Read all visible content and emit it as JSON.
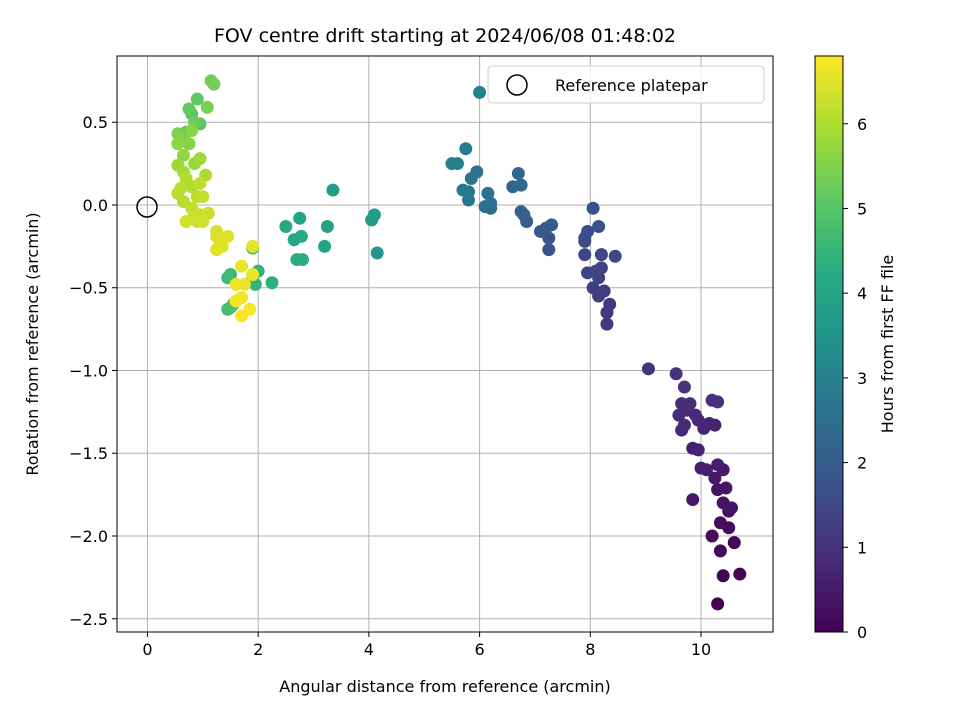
{
  "chart_data": {
    "type": "scatter",
    "title": "FOV centre drift starting at 2024/06/08 01:48:02",
    "xlabel": "Angular distance from reference (arcmin)",
    "ylabel": "Rotation from reference (arcmin)",
    "xlim": [
      -0.55,
      11.3
    ],
    "ylim": [
      -2.58,
      0.9
    ],
    "xticks": [
      0,
      2,
      4,
      6,
      8,
      10
    ],
    "yticks": [
      -2.5,
      -2.0,
      -1.5,
      -1.0,
      -0.5,
      0.0,
      0.5
    ],
    "xtick_labels": [
      "0",
      "2",
      "4",
      "6",
      "8",
      "10"
    ],
    "ytick_labels": [
      "−2.5",
      "−2.0",
      "−1.5",
      "−1.0",
      "−0.5",
      "0.0",
      "0.5"
    ],
    "grid": true,
    "colormap": "viridis",
    "colorbar": {
      "label": "Hours from first FF file",
      "range": [
        0,
        6.8
      ],
      "ticks": [
        0,
        1,
        2,
        3,
        4,
        5,
        6
      ],
      "tick_labels": [
        "0",
        "1",
        "2",
        "3",
        "4",
        "5",
        "6"
      ]
    },
    "legend": {
      "placement": "top-right",
      "entries": [
        {
          "label": "Reference platepar",
          "marker": "open-circle"
        }
      ]
    },
    "reference_point": {
      "x": 0,
      "y": 0
    },
    "points": [
      {
        "x": 10.3,
        "y": -2.41,
        "t": 0.02
      },
      {
        "x": 10.4,
        "y": -2.24,
        "t": 0.05
      },
      {
        "x": 10.7,
        "y": -2.23,
        "t": 0.08
      },
      {
        "x": 10.6,
        "y": -2.04,
        "t": 0.12
      },
      {
        "x": 10.35,
        "y": -2.09,
        "t": 0.15
      },
      {
        "x": 10.2,
        "y": -2.0,
        "t": 0.18
      },
      {
        "x": 10.5,
        "y": -1.95,
        "t": 0.22
      },
      {
        "x": 10.35,
        "y": -1.92,
        "t": 0.25
      },
      {
        "x": 10.5,
        "y": -1.85,
        "t": 0.28
      },
      {
        "x": 10.4,
        "y": -1.8,
        "t": 0.32
      },
      {
        "x": 10.55,
        "y": -1.83,
        "t": 0.35
      },
      {
        "x": 10.3,
        "y": -1.72,
        "t": 0.38
      },
      {
        "x": 10.45,
        "y": -1.71,
        "t": 0.42
      },
      {
        "x": 9.85,
        "y": -1.78,
        "t": 0.45
      },
      {
        "x": 10.25,
        "y": -1.65,
        "t": 0.48
      },
      {
        "x": 10.4,
        "y": -1.6,
        "t": 0.52
      },
      {
        "x": 10.3,
        "y": -1.57,
        "t": 0.55
      },
      {
        "x": 10.1,
        "y": -1.6,
        "t": 0.58
      },
      {
        "x": 10.0,
        "y": -1.59,
        "t": 0.6
      },
      {
        "x": 9.85,
        "y": -1.47,
        "t": 0.62
      },
      {
        "x": 9.95,
        "y": -1.48,
        "t": 0.65
      },
      {
        "x": 10.25,
        "y": -1.33,
        "t": 0.68
      },
      {
        "x": 10.15,
        "y": -1.32,
        "t": 0.7
      },
      {
        "x": 10.05,
        "y": -1.35,
        "t": 0.72
      },
      {
        "x": 9.95,
        "y": -1.3,
        "t": 0.75
      },
      {
        "x": 9.65,
        "y": -1.36,
        "t": 0.78
      },
      {
        "x": 9.7,
        "y": -1.33,
        "t": 0.8
      },
      {
        "x": 9.9,
        "y": -1.27,
        "t": 0.82
      },
      {
        "x": 9.6,
        "y": -1.27,
        "t": 0.85
      },
      {
        "x": 9.75,
        "y": -1.24,
        "t": 0.87
      },
      {
        "x": 9.65,
        "y": -1.2,
        "t": 0.9
      },
      {
        "x": 9.8,
        "y": -1.2,
        "t": 0.92
      },
      {
        "x": 10.2,
        "y": -1.18,
        "t": 0.95
      },
      {
        "x": 10.3,
        "y": -1.19,
        "t": 0.97
      },
      {
        "x": 9.7,
        "y": -1.1,
        "t": 1.0
      },
      {
        "x": 9.55,
        "y": -1.02,
        "t": 1.02
      },
      {
        "x": 9.05,
        "y": -0.99,
        "t": 1.05
      },
      {
        "x": 8.3,
        "y": -0.72,
        "t": 1.12
      },
      {
        "x": 8.3,
        "y": -0.65,
        "t": 1.15
      },
      {
        "x": 8.35,
        "y": -0.6,
        "t": 1.18
      },
      {
        "x": 8.15,
        "y": -0.55,
        "t": 1.22
      },
      {
        "x": 8.25,
        "y": -0.52,
        "t": 1.25
      },
      {
        "x": 8.05,
        "y": -0.5,
        "t": 1.28
      },
      {
        "x": 8.15,
        "y": -0.44,
        "t": 1.32
      },
      {
        "x": 8.2,
        "y": -0.38,
        "t": 1.35
      },
      {
        "x": 7.95,
        "y": -0.41,
        "t": 1.38
      },
      {
        "x": 8.1,
        "y": -0.4,
        "t": 1.42
      },
      {
        "x": 7.9,
        "y": -0.3,
        "t": 1.45
      },
      {
        "x": 8.2,
        "y": -0.3,
        "t": 1.48
      },
      {
        "x": 8.45,
        "y": -0.31,
        "t": 1.5
      },
      {
        "x": 7.9,
        "y": -0.22,
        "t": 1.55
      },
      {
        "x": 7.9,
        "y": -0.2,
        "t": 1.58
      },
      {
        "x": 7.95,
        "y": -0.16,
        "t": 1.62
      },
      {
        "x": 8.15,
        "y": -0.13,
        "t": 1.65
      },
      {
        "x": 8.05,
        "y": -0.02,
        "t": 1.68
      },
      {
        "x": 7.25,
        "y": -0.27,
        "t": 1.75
      },
      {
        "x": 7.25,
        "y": -0.2,
        "t": 1.8
      },
      {
        "x": 7.1,
        "y": -0.16,
        "t": 1.85
      },
      {
        "x": 7.2,
        "y": -0.14,
        "t": 1.9
      },
      {
        "x": 7.3,
        "y": -0.12,
        "t": 1.95
      },
      {
        "x": 6.85,
        "y": -0.1,
        "t": 2.0
      },
      {
        "x": 6.8,
        "y": -0.06,
        "t": 2.05
      },
      {
        "x": 6.75,
        "y": -0.04,
        "t": 2.1
      },
      {
        "x": 6.6,
        "y": 0.11,
        "t": 2.2
      },
      {
        "x": 6.75,
        "y": 0.12,
        "t": 2.25
      },
      {
        "x": 6.7,
        "y": 0.19,
        "t": 2.3
      },
      {
        "x": 6.2,
        "y": -0.02,
        "t": 2.4
      },
      {
        "x": 6.1,
        "y": -0.01,
        "t": 2.45
      },
      {
        "x": 6.2,
        "y": 0.01,
        "t": 2.5
      },
      {
        "x": 6.15,
        "y": 0.07,
        "t": 2.55
      },
      {
        "x": 5.95,
        "y": 0.2,
        "t": 2.6
      },
      {
        "x": 5.85,
        "y": 0.16,
        "t": 2.65
      },
      {
        "x": 5.8,
        "y": 0.03,
        "t": 2.7
      },
      {
        "x": 5.8,
        "y": 0.08,
        "t": 2.75
      },
      {
        "x": 5.7,
        "y": 0.09,
        "t": 2.8
      },
      {
        "x": 5.75,
        "y": 0.34,
        "t": 2.85
      },
      {
        "x": 5.6,
        "y": 0.25,
        "t": 2.9
      },
      {
        "x": 5.5,
        "y": 0.25,
        "t": 2.95
      },
      {
        "x": 6.0,
        "y": 0.68,
        "t": 3.0
      },
      {
        "x": 4.15,
        "y": -0.29,
        "t": 3.6
      },
      {
        "x": 4.05,
        "y": -0.09,
        "t": 3.7
      },
      {
        "x": 4.1,
        "y": -0.06,
        "t": 3.75
      },
      {
        "x": 3.35,
        "y": 0.09,
        "t": 3.8
      },
      {
        "x": 3.25,
        "y": -0.13,
        "t": 3.9
      },
      {
        "x": 3.2,
        "y": -0.25,
        "t": 3.95
      },
      {
        "x": 2.75,
        "y": -0.08,
        "t": 4.0
      },
      {
        "x": 2.65,
        "y": -0.21,
        "t": 4.05
      },
      {
        "x": 2.78,
        "y": -0.19,
        "t": 4.1
      },
      {
        "x": 2.5,
        "y": -0.13,
        "t": 4.15
      },
      {
        "x": 2.7,
        "y": -0.33,
        "t": 4.2
      },
      {
        "x": 2.8,
        "y": -0.33,
        "t": 4.25
      },
      {
        "x": 2.25,
        "y": -0.47,
        "t": 4.35
      },
      {
        "x": 2.0,
        "y": -0.4,
        "t": 4.4
      },
      {
        "x": 1.9,
        "y": -0.45,
        "t": 4.45
      },
      {
        "x": 1.95,
        "y": -0.48,
        "t": 4.5
      },
      {
        "x": 1.9,
        "y": -0.26,
        "t": 4.55
      },
      {
        "x": 1.5,
        "y": -0.42,
        "t": 4.6
      },
      {
        "x": 1.45,
        "y": -0.44,
        "t": 4.65
      },
      {
        "x": 1.55,
        "y": -0.6,
        "t": 4.7
      },
      {
        "x": 1.45,
        "y": -0.63,
        "t": 4.75
      },
      {
        "x": 1.5,
        "y": -0.62,
        "t": 4.8
      },
      {
        "x": 0.8,
        "y": 0.55,
        "t": 5.0
      },
      {
        "x": 0.95,
        "y": 0.49,
        "t": 5.05
      },
      {
        "x": 0.9,
        "y": 0.64,
        "t": 5.1
      },
      {
        "x": 0.7,
        "y": 0.44,
        "t": 5.15
      },
      {
        "x": 0.75,
        "y": 0.58,
        "t": 5.2
      },
      {
        "x": 0.85,
        "y": 0.5,
        "t": 5.25
      },
      {
        "x": 1.15,
        "y": 0.75,
        "t": 5.3
      },
      {
        "x": 1.2,
        "y": 0.73,
        "t": 5.35
      },
      {
        "x": 1.08,
        "y": 0.59,
        "t": 5.4
      },
      {
        "x": 0.65,
        "y": 0.4,
        "t": 5.45
      },
      {
        "x": 0.55,
        "y": 0.43,
        "t": 5.5
      },
      {
        "x": 0.75,
        "y": 0.37,
        "t": 5.55
      },
      {
        "x": 0.8,
        "y": 0.45,
        "t": 5.6
      },
      {
        "x": 0.55,
        "y": 0.37,
        "t": 5.65
      },
      {
        "x": 0.65,
        "y": 0.3,
        "t": 5.7
      },
      {
        "x": 0.85,
        "y": 0.25,
        "t": 5.75
      },
      {
        "x": 0.55,
        "y": 0.24,
        "t": 5.8
      },
      {
        "x": 0.95,
        "y": 0.28,
        "t": 5.85
      },
      {
        "x": 0.65,
        "y": 0.2,
        "t": 5.9
      },
      {
        "x": 1.05,
        "y": 0.18,
        "t": 5.95
      },
      {
        "x": 0.7,
        "y": 0.16,
        "t": 6.0
      },
      {
        "x": 0.8,
        "y": 0.11,
        "t": 6.02
      },
      {
        "x": 0.55,
        "y": 0.07,
        "t": 6.05
      },
      {
        "x": 0.65,
        "y": 0.02,
        "t": 6.08
      },
      {
        "x": 0.6,
        "y": 0.1,
        "t": 6.1
      },
      {
        "x": 0.9,
        "y": 0.05,
        "t": 6.12
      },
      {
        "x": 0.95,
        "y": 0.13,
        "t": 6.15
      },
      {
        "x": 1.0,
        "y": 0.05,
        "t": 6.18
      },
      {
        "x": 0.8,
        "y": -0.02,
        "t": 6.2
      },
      {
        "x": 0.85,
        "y": -0.05,
        "t": 6.22
      },
      {
        "x": 0.95,
        "y": -0.06,
        "t": 6.25
      },
      {
        "x": 1.1,
        "y": -0.05,
        "t": 6.28
      },
      {
        "x": 0.9,
        "y": -0.1,
        "t": 6.3
      },
      {
        "x": 1.0,
        "y": -0.1,
        "t": 6.32
      },
      {
        "x": 0.7,
        "y": -0.1,
        "t": 6.35
      },
      {
        "x": 1.25,
        "y": -0.16,
        "t": 6.4
      },
      {
        "x": 1.25,
        "y": -0.19,
        "t": 6.42
      },
      {
        "x": 1.3,
        "y": -0.21,
        "t": 6.45
      },
      {
        "x": 1.45,
        "y": -0.19,
        "t": 6.48
      },
      {
        "x": 1.35,
        "y": -0.25,
        "t": 6.5
      },
      {
        "x": 1.25,
        "y": -0.27,
        "t": 6.52
      },
      {
        "x": 1.9,
        "y": -0.25,
        "t": 6.55
      },
      {
        "x": 1.7,
        "y": -0.37,
        "t": 6.58
      },
      {
        "x": 1.9,
        "y": -0.42,
        "t": 6.6
      },
      {
        "x": 1.75,
        "y": -0.48,
        "t": 6.62
      },
      {
        "x": 1.6,
        "y": -0.48,
        "t": 6.65
      },
      {
        "x": 1.7,
        "y": -0.56,
        "t": 6.68
      },
      {
        "x": 1.6,
        "y": -0.58,
        "t": 6.7
      },
      {
        "x": 1.85,
        "y": -0.63,
        "t": 6.72
      },
      {
        "x": 1.7,
        "y": -0.67,
        "t": 6.75
      }
    ]
  }
}
